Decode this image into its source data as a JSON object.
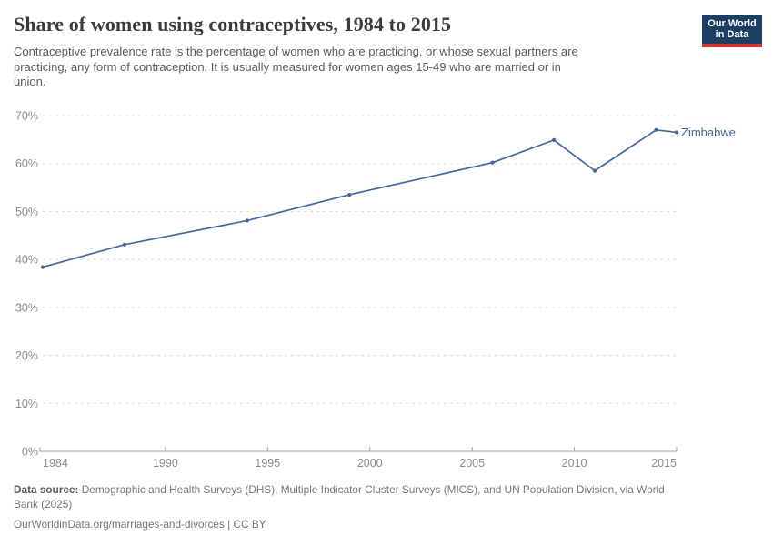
{
  "header": {
    "title": "Share of women using contraceptives, 1984 to 2015",
    "subtitle_lines": [
      "Contraceptive prevalence rate is the percentage of women who are practicing, or whose sexual partners are",
      "practicing, any form of contraception. It is usually measured for women ages 15-49 who are married or in",
      "union."
    ]
  },
  "logo": {
    "line1": "Our World",
    "line2": "in Data",
    "bg_color": "#1d3d63",
    "accent_color": "#d8332b"
  },
  "chart_data": {
    "type": "line",
    "title": "Share of women using contraceptives, 1984 to 2015",
    "xlabel": "",
    "ylabel": "",
    "xlim": [
      1984,
      2015
    ],
    "ylim": [
      0,
      70
    ],
    "x_ticks": [
      1984,
      1990,
      1995,
      2000,
      2005,
      2010,
      2015
    ],
    "y_ticks": [
      0,
      10,
      20,
      30,
      40,
      50,
      60,
      70
    ],
    "y_tick_suffix": "%",
    "grid": "horizontal-dashed",
    "legend_position": "end-of-line-label",
    "colors": {
      "line": "#4565A0",
      "grid": "#dcdcdc",
      "axis": "#a0a0a0",
      "tick_label": "#8c8c8c"
    },
    "series": [
      {
        "name": "Zimbabwe",
        "points": [
          {
            "x": 1984,
            "y": 38.4
          },
          {
            "x": 1988,
            "y": 43.1
          },
          {
            "x": 1994,
            "y": 48.1
          },
          {
            "x": 1999,
            "y": 53.5
          },
          {
            "x": 2006,
            "y": 60.2
          },
          {
            "x": 2009,
            "y": 64.9
          },
          {
            "x": 2011,
            "y": 58.5
          },
          {
            "x": 2014,
            "y": 67.0
          },
          {
            "x": 2015,
            "y": 66.5
          }
        ]
      }
    ]
  },
  "footer": {
    "source_label": "Data source:",
    "source_lines": [
      "Demographic and Health Surveys (DHS), Multiple Indicator Cluster Surveys (MICS), and UN Population Division, via World",
      "Bank (2025)"
    ],
    "link_line": "OurWorldinData.org/marriages-and-divorces | CC BY"
  }
}
